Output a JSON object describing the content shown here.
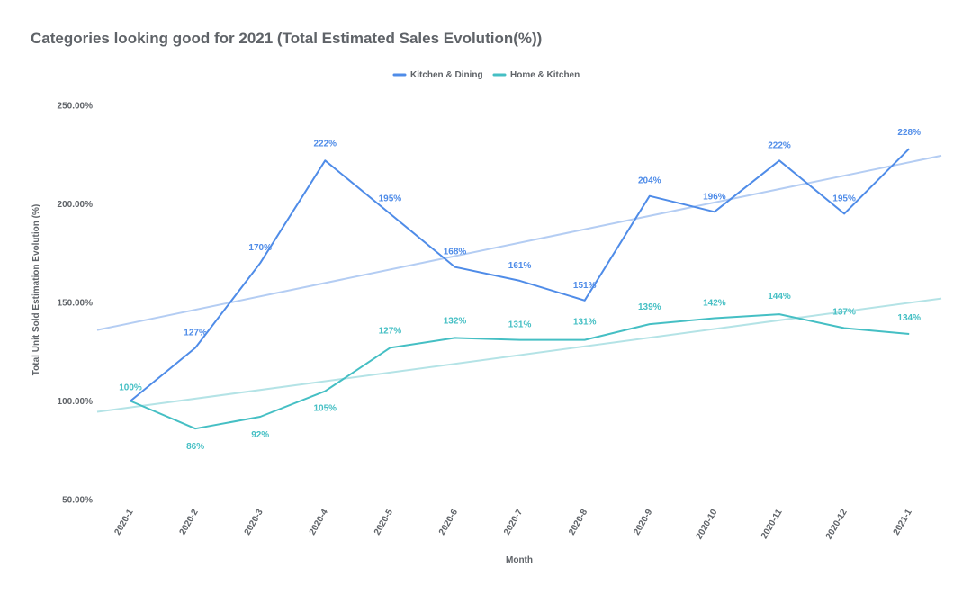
{
  "chart_data": {
    "type": "line",
    "title": "Categories looking good for 2021 (Total Estimated Sales Evolution(%))",
    "xlabel": "Month",
    "ylabel": "Total Unit Sold Estimation Evolution (%)",
    "categories": [
      "2020-1",
      "2020-2",
      "2020-3",
      "2020-4",
      "2020-5",
      "2020-6",
      "2020-7",
      "2020-8",
      "2020-9",
      "2020-10",
      "2020-11",
      "2020-12",
      "2021-1"
    ],
    "ylim": [
      50,
      250
    ],
    "yticks": [
      50,
      100,
      150,
      200,
      250
    ],
    "ytick_labels": [
      "50.00%",
      "100.00%",
      "150.00%",
      "200.00%",
      "250.00%"
    ],
    "grid": false,
    "legend_position": "top-center",
    "series": [
      {
        "name": "Kitchen & Dining",
        "color": "#4f8ce8",
        "trendline_color": "#b4cdf3",
        "trendline_endpoints": [
          136,
          224.5
        ],
        "values": [
          100,
          127,
          170,
          222,
          195,
          168,
          161,
          151,
          204,
          196,
          222,
          195,
          228
        ],
        "labels": [
          "",
          "127%",
          "170%",
          "222%",
          "195%",
          "168%",
          "161%",
          "151%",
          "204%",
          "196%",
          "222%",
          "195%",
          "228%"
        ]
      },
      {
        "name": "Home & Kitchen",
        "color": "#45bfc4",
        "trendline_color": "#b4e3e6",
        "trendline_endpoints": [
          94.5,
          152
        ],
        "values": [
          100,
          86,
          92,
          105,
          127,
          132,
          131,
          131,
          139,
          142,
          144,
          137,
          134
        ],
        "labels": [
          "100%",
          "86%",
          "92%",
          "105%",
          "127%",
          "132%",
          "131%",
          "131%",
          "139%",
          "142%",
          "144%",
          "137%",
          "134%"
        ]
      }
    ]
  }
}
